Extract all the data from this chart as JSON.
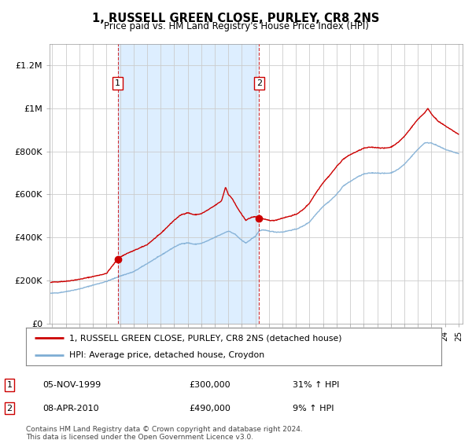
{
  "title": "1, RUSSELL GREEN CLOSE, PURLEY, CR8 2NS",
  "subtitle": "Price paid vs. HM Land Registry's House Price Index (HPI)",
  "legend_line1": "1, RUSSELL GREEN CLOSE, PURLEY, CR8 2NS (detached house)",
  "legend_line2": "HPI: Average price, detached house, Croydon",
  "footer": "Contains HM Land Registry data © Crown copyright and database right 2024.\nThis data is licensed under the Open Government Licence v3.0.",
  "sale1": {
    "label": "1",
    "date_x": 1999.84,
    "price": 300000,
    "text": "05-NOV-1999",
    "amount": "£300,000",
    "hpi_pct": "31% ↑ HPI"
  },
  "sale2": {
    "label": "2",
    "date_x": 2010.27,
    "price": 490000,
    "text": "08-APR-2010",
    "amount": "£490,000",
    "hpi_pct": "9% ↑ HPI"
  },
  "ylim": [
    0,
    1300000
  ],
  "xlim": [
    1994.8,
    2025.3
  ],
  "yticks": [
    0,
    200000,
    400000,
    600000,
    800000,
    1000000,
    1200000
  ],
  "ytick_labels": [
    "£0",
    "£200K",
    "£400K",
    "£600K",
    "£800K",
    "£1M",
    "£1.2M"
  ],
  "red_color": "#cc0000",
  "blue_color": "#7eadd4",
  "shade_color": "#ddeeff",
  "bg_color": "#ffffff",
  "title_font": "DejaVu Sans",
  "title_fontsize": 11,
  "subtitle_fontsize": 9
}
